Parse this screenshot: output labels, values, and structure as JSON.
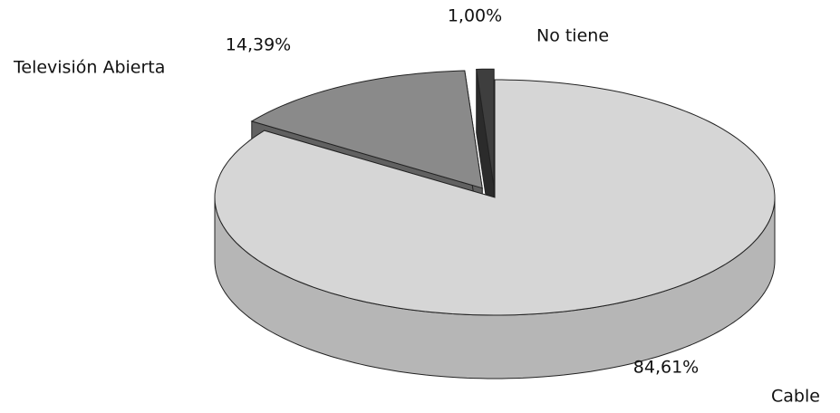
{
  "chart_data": {
    "type": "pie",
    "categories": [
      "Cable",
      "Televisión Abierta",
      "No tiene"
    ],
    "values": [
      84.61,
      14.39,
      1.0
    ],
    "value_labels": [
      "84,61%",
      "14,39%",
      "1,00%"
    ],
    "colors": [
      "#d6d6d6",
      "#8a8a8a",
      "#3e3e3e"
    ],
    "exploded": [
      false,
      true,
      true
    ]
  }
}
